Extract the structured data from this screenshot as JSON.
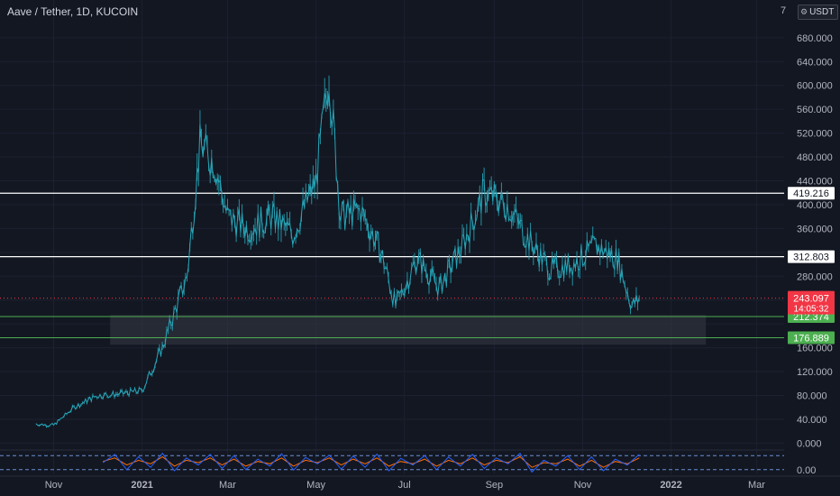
{
  "header": {
    "title": "Aave / Tether, 1D, KUCOIN",
    "currency": "USDT",
    "scale_mark": "7"
  },
  "colors": {
    "background": "#131722",
    "grid": "#1c2030",
    "series": "#26a6b8",
    "support_line": "#4caf50",
    "support_fill": "#363a45",
    "resistance_line": "#ffffff",
    "last_price": "#f23645",
    "stoch_k": "#2962ff",
    "stoch_d": "#ff6d00",
    "stoch_band": "#6a8fd1"
  },
  "chart_data": {
    "type": "line",
    "x_tick_labels": [
      "Nov",
      "2021",
      "Mar",
      "May",
      "Jul",
      "Sep",
      "Nov",
      "2022",
      "Mar"
    ],
    "x": [
      "2020-10-20",
      "2020-11-01",
      "2020-11-15",
      "2020-12-01",
      "2020-12-15",
      "2021-01-01",
      "2021-01-15",
      "2021-02-01",
      "2021-02-10",
      "2021-02-20",
      "2021-03-01",
      "2021-03-15",
      "2021-04-01",
      "2021-04-15",
      "2021-05-01",
      "2021-05-10",
      "2021-05-18",
      "2021-06-01",
      "2021-06-15",
      "2021-06-25",
      "2021-07-10",
      "2021-07-25",
      "2021-08-10",
      "2021-08-25",
      "2021-09-10",
      "2021-09-25",
      "2021-10-10",
      "2021-10-25",
      "2021-11-10",
      "2021-11-25",
      "2021-12-05",
      "2021-12-10"
    ],
    "values": [
      32,
      30,
      60,
      80,
      82,
      88,
      160,
      280,
      500,
      470,
      380,
      360,
      380,
      350,
      440,
      620,
      380,
      390,
      320,
      230,
      310,
      260,
      330,
      420,
      400,
      340,
      290,
      300,
      330,
      310,
      230,
      243
    ],
    "y_ticks": [
      0,
      40,
      80,
      120,
      160,
      200,
      240,
      280,
      320,
      360,
      400,
      440,
      480,
      520,
      560,
      600,
      640,
      680
    ],
    "y_tick_labels": [
      "0.000",
      "40.000",
      "80.000",
      "120.000",
      "160.000",
      "",
      "",
      "280.000",
      "",
      "360.000",
      "400.000",
      "440.000",
      "480.000",
      "520.000",
      "560.000",
      "600.000",
      "640.000",
      "680.000"
    ],
    "ylim": [
      -10,
      710
    ],
    "horizontal_lines": [
      {
        "value": 419.216,
        "label": "419.216",
        "kind": "resistance"
      },
      {
        "value": 312.803,
        "label": "312.803",
        "kind": "resistance"
      },
      {
        "value": 212.374,
        "label": "212.374",
        "kind": "support"
      },
      {
        "value": 176.889,
        "label": "176.889",
        "kind": "support"
      }
    ],
    "support_zone": {
      "from": "2020-12-10",
      "to": "2022-01-25",
      "low": 165,
      "high": 215
    },
    "last_price": {
      "value": 243.097,
      "label": "243.097",
      "countdown": "14:05:32"
    },
    "grid": true,
    "oscillator": {
      "type": "stochastic",
      "ylim": [
        0,
        100
      ],
      "bands": [
        20,
        80
      ],
      "y_tick_labels": [
        "0.00"
      ],
      "k": [
        50,
        85,
        20,
        75,
        30,
        90,
        15,
        70,
        40,
        85,
        25,
        80,
        20,
        65,
        35,
        88,
        18,
        72,
        45,
        82,
        22,
        78,
        30,
        86,
        15,
        68,
        40,
        80,
        20,
        74,
        35,
        85,
        25,
        70,
        45,
        90,
        10,
        60,
        35,
        80,
        20,
        75,
        15,
        65,
        40,
        85
      ],
      "d": [
        55,
        70,
        40,
        60,
        45,
        75,
        35,
        60,
        50,
        70,
        40,
        65,
        35,
        55,
        45,
        70,
        35,
        60,
        50,
        70,
        40,
        65,
        45,
        70,
        35,
        55,
        45,
        65,
        35,
        60,
        45,
        70,
        40,
        60,
        50,
        75,
        30,
        50,
        45,
        65,
        35,
        60,
        30,
        55,
        45,
        70
      ]
    }
  }
}
